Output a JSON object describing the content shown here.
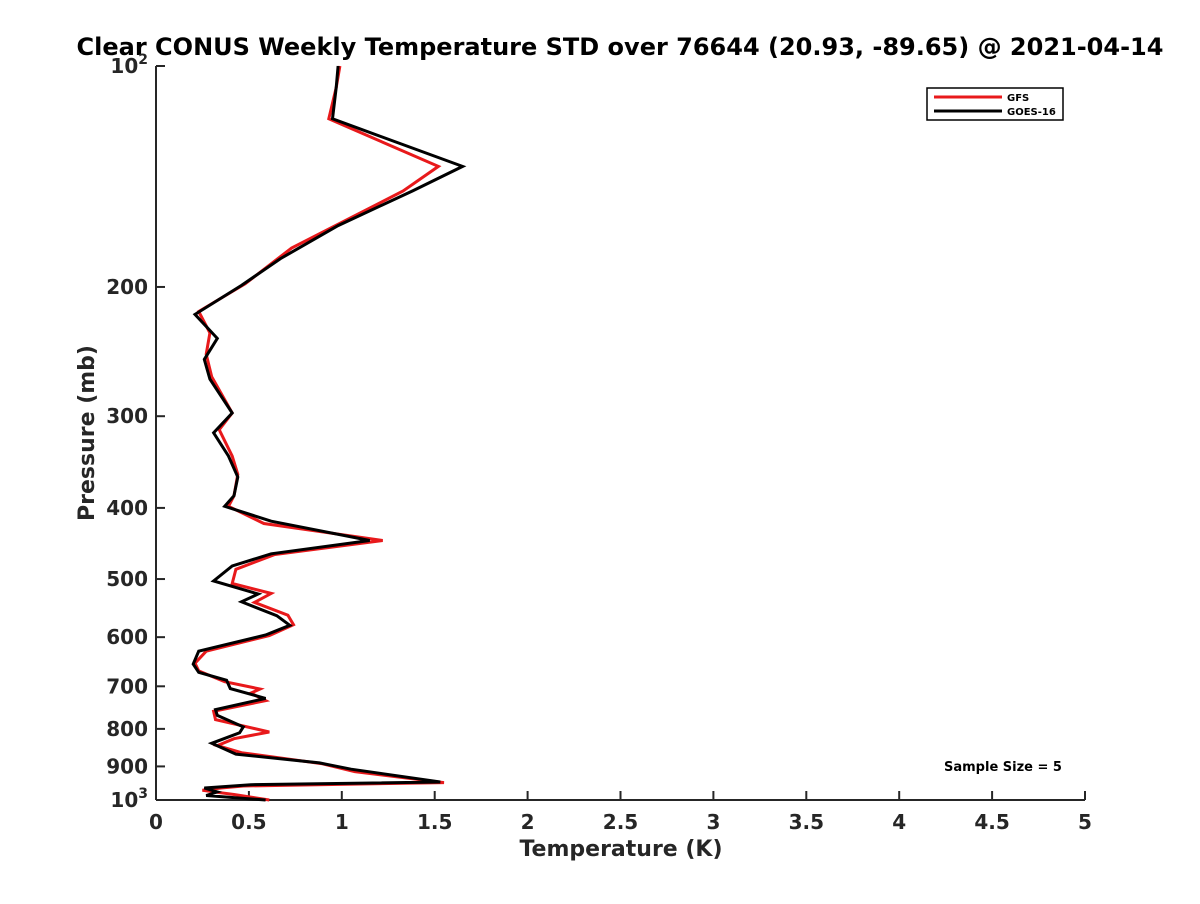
{
  "chart_data": {
    "type": "line",
    "title": "Clear CONUS Weekly Temperature STD over 76644 (20.93, -89.65) @ 2021-04-14",
    "xlabel": "Temperature (K)",
    "ylabel": "Pressure (mb)",
    "xlim": [
      0,
      5
    ],
    "ylim": [
      100,
      1000
    ],
    "y_scale": "log",
    "y_reversed": true,
    "grid": false,
    "legend_position": "top-right",
    "x_ticks": [
      0,
      0.5,
      1,
      1.5,
      2,
      2.5,
      3,
      3.5,
      4,
      4.5,
      5
    ],
    "x_tick_labels": [
      "0",
      "0.5",
      "1",
      "1.5",
      "2",
      "2.5",
      "3",
      "3.5",
      "4",
      "4.5",
      "5"
    ],
    "y_ticks": [
      100,
      200,
      300,
      400,
      500,
      600,
      700,
      800,
      900,
      1000
    ],
    "y_tick_labels": [
      {
        "base": "10",
        "exp": "2"
      },
      {
        "base": "200",
        "exp": ""
      },
      {
        "base": "300",
        "exp": ""
      },
      {
        "base": "400",
        "exp": ""
      },
      {
        "base": "500",
        "exp": ""
      },
      {
        "base": "600",
        "exp": ""
      },
      {
        "base": "700",
        "exp": ""
      },
      {
        "base": "800",
        "exp": ""
      },
      {
        "base": "900",
        "exp": ""
      },
      {
        "base": "10",
        "exp": "3"
      }
    ],
    "annotation": "Sample Size = 5",
    "series": [
      {
        "name": "GFS",
        "color": "#e8191b",
        "points": [
          [
            0.99,
            100
          ],
          [
            0.97,
            107
          ],
          [
            0.93,
            118
          ],
          [
            1.52,
            137
          ],
          [
            1.33,
            148
          ],
          [
            0.73,
            177
          ],
          [
            0.48,
            198
          ],
          [
            0.23,
            216
          ],
          [
            0.29,
            231
          ],
          [
            0.27,
            247
          ],
          [
            0.3,
            265
          ],
          [
            0.41,
            297
          ],
          [
            0.34,
            313
          ],
          [
            0.41,
            340
          ],
          [
            0.44,
            360
          ],
          [
            0.42,
            385
          ],
          [
            0.39,
            398
          ],
          [
            0.58,
            420
          ],
          [
            1.22,
            443
          ],
          [
            0.64,
            463
          ],
          [
            0.43,
            485
          ],
          [
            0.41,
            507
          ],
          [
            0.62,
            523
          ],
          [
            0.53,
            538
          ],
          [
            0.71,
            560
          ],
          [
            0.74,
            577
          ],
          [
            0.61,
            597
          ],
          [
            0.27,
            627
          ],
          [
            0.21,
            651
          ],
          [
            0.23,
            667
          ],
          [
            0.37,
            690
          ],
          [
            0.56,
            706
          ],
          [
            0.51,
            715
          ],
          [
            0.59,
            732
          ],
          [
            0.31,
            757
          ],
          [
            0.32,
            777
          ],
          [
            0.61,
            808
          ],
          [
            0.42,
            825
          ],
          [
            0.33,
            843
          ],
          [
            0.46,
            862
          ],
          [
            0.89,
            892
          ],
          [
            1.07,
            915
          ],
          [
            1.55,
            947
          ],
          [
            0.47,
            957
          ],
          [
            0.35,
            963
          ],
          [
            0.25,
            970
          ],
          [
            0.42,
            983
          ],
          [
            0.61,
            1000
          ]
        ]
      },
      {
        "name": "GOES-16",
        "color": "#000000",
        "points": [
          [
            0.98,
            100
          ],
          [
            0.97,
            107
          ],
          [
            0.95,
            118
          ],
          [
            1.65,
            137
          ],
          [
            1.38,
            148
          ],
          [
            0.98,
            165
          ],
          [
            0.67,
            183
          ],
          [
            0.46,
            199
          ],
          [
            0.21,
            218
          ],
          [
            0.33,
            235
          ],
          [
            0.26,
            251
          ],
          [
            0.29,
            267
          ],
          [
            0.41,
            297
          ],
          [
            0.31,
            316
          ],
          [
            0.39,
            340
          ],
          [
            0.44,
            363
          ],
          [
            0.42,
            385
          ],
          [
            0.37,
            398
          ],
          [
            0.62,
            417
          ],
          [
            1.15,
            443
          ],
          [
            0.62,
            462
          ],
          [
            0.41,
            480
          ],
          [
            0.31,
            503
          ],
          [
            0.55,
            524
          ],
          [
            0.46,
            537
          ],
          [
            0.65,
            561
          ],
          [
            0.72,
            578
          ],
          [
            0.59,
            596
          ],
          [
            0.23,
            627
          ],
          [
            0.2,
            653
          ],
          [
            0.23,
            670
          ],
          [
            0.38,
            687
          ],
          [
            0.4,
            705
          ],
          [
            0.59,
            727
          ],
          [
            0.32,
            753
          ],
          [
            0.33,
            767
          ],
          [
            0.47,
            795
          ],
          [
            0.45,
            810
          ],
          [
            0.3,
            837
          ],
          [
            0.43,
            866
          ],
          [
            0.88,
            890
          ],
          [
            1.05,
            908
          ],
          [
            1.53,
            945
          ],
          [
            0.51,
            953
          ],
          [
            0.26,
            963
          ],
          [
            0.33,
            975
          ],
          [
            0.27,
            986
          ],
          [
            0.59,
            1000
          ]
        ]
      }
    ]
  }
}
